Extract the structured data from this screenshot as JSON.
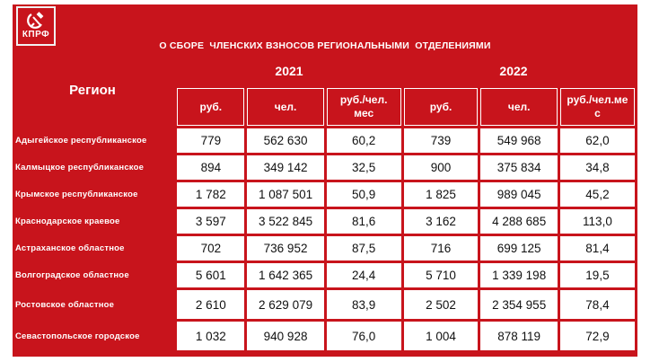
{
  "logo": {
    "text": "КПРФ",
    "emblem": "hammer-and-sickle-icon"
  },
  "title": "О СБОРЕ  ЧЛЕНСКИХ ВЗНОСОВ РЕГИОНАЛЬНЫМИ  ОТДЕЛЕНИЯМИ",
  "region_header": "Регион",
  "years": [
    "2021",
    "2022"
  ],
  "columns": [
    "руб.",
    "чел.",
    "руб./чел.\nмес",
    "руб.",
    "чел.",
    "руб./чел.ме\nс"
  ],
  "rows": [
    {
      "region": "Адыгейское республиканское",
      "cells": [
        "779",
        "562 630",
        "60,2",
        "739",
        "549 968",
        "62,0"
      ]
    },
    {
      "region": "Калмыцкое республиканское",
      "cells": [
        "894",
        "349 142",
        "32,5",
        "900",
        "375 834",
        "34,8"
      ]
    },
    {
      "region": "Крымское республиканское",
      "cells": [
        "1 782",
        "1 087 501",
        "50,9",
        "1 825",
        "989 045",
        "45,2"
      ]
    },
    {
      "region": "Краснодарское краевое",
      "cells": [
        "3 597",
        "3 522 845",
        "81,6",
        "3 162",
        "4 288 685",
        "113,0"
      ]
    },
    {
      "region": "Астраханское областное",
      "cells": [
        "702",
        "736 952",
        "87,5",
        "716",
        "699 125",
        "81,4"
      ]
    },
    {
      "region": "Волгоградское областное",
      "cells": [
        "5 601",
        "1 642 365",
        "24,4",
        "5 710",
        "1 339 198",
        "19,5"
      ]
    },
    {
      "region": "Ростовское областное",
      "cells": [
        "2 610",
        "2 629 079",
        "83,9",
        "2 502",
        "2 354 955",
        "78,4"
      ]
    },
    {
      "region": "Севастопольское городское",
      "cells": [
        "1 032",
        "940 928",
        "76,0",
        "1 004",
        "878 119",
        "72,9"
      ]
    }
  ],
  "colors": {
    "accent": "#c8141c",
    "cell": "#ffffff",
    "text": "#111111"
  }
}
